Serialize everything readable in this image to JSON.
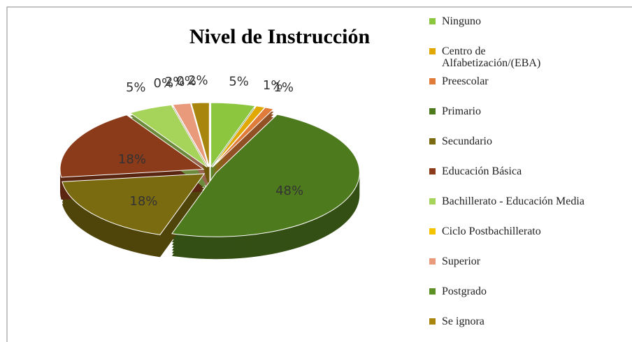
{
  "chart_data": {
    "type": "pie",
    "title": "Nivel de Instrucción",
    "categories": [
      "Ninguno",
      "Centro de Alfabetización/(EBA)",
      "Preescolar",
      "Primario",
      "Secundario",
      "Educación Básica",
      "Bachillerato - Educación Media",
      "Ciclo Postbachillerato",
      "Superior",
      "Postgrado",
      "Se ignora"
    ],
    "values": [
      5,
      1,
      1,
      48,
      18,
      18,
      5,
      0,
      2,
      0,
      2
    ],
    "value_labels": [
      "5%",
      "1%",
      "1%",
      "48%",
      "18%",
      "18%",
      "5%",
      "0%",
      "2%",
      "0%",
      "2%"
    ],
    "colors": [
      "#8cc63f",
      "#e0a800",
      "#e07b39",
      "#4e7a1e",
      "#7a6a10",
      "#8b3a1a",
      "#a6d45a",
      "#f5c400",
      "#e89a7a",
      "#5c8f24",
      "#a8860e"
    ]
  }
}
